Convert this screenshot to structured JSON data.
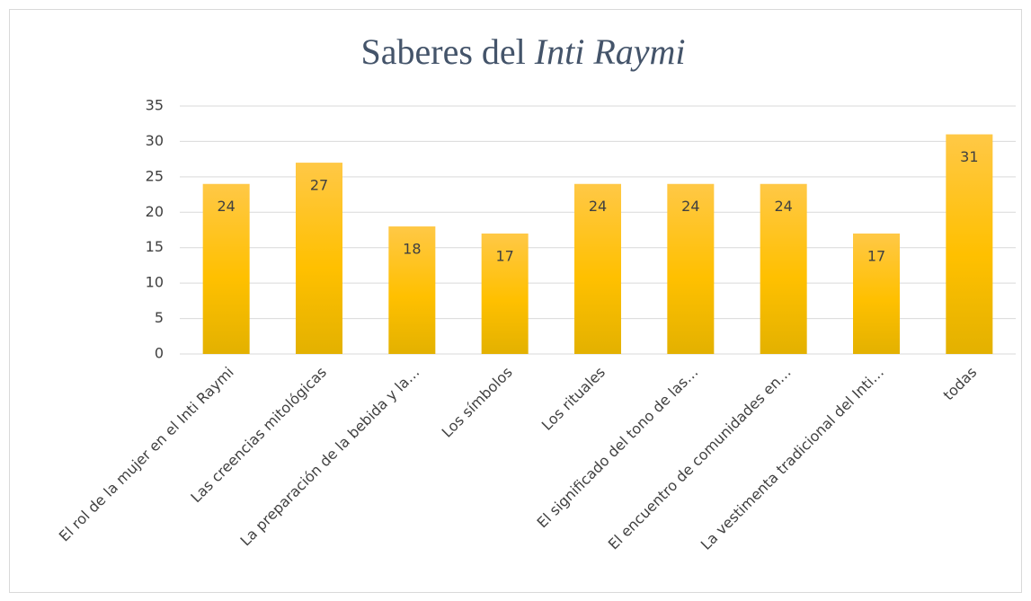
{
  "chart_data": {
    "type": "bar",
    "title": {
      "text": "Saberes del",
      "italic": "Inti Raymi"
    },
    "categories": [
      "El rol de la mujer en el Inti Raymi",
      "Las creencias mitológicas",
      "La preparación de la bebida y la…",
      "Los símbolos",
      "Los rituales",
      "El significado del tono de las…",
      "El encuentro de comunidades en…",
      "La vestimenta tradicional del Inti…",
      "todas"
    ],
    "values": [
      24,
      27,
      18,
      17,
      24,
      24,
      24,
      17,
      31
    ],
    "color": "#ffc000",
    "ylim": [
      0,
      35
    ],
    "yticks": [
      0,
      5,
      10,
      15,
      20,
      25,
      30,
      35
    ],
    "grid": true
  }
}
